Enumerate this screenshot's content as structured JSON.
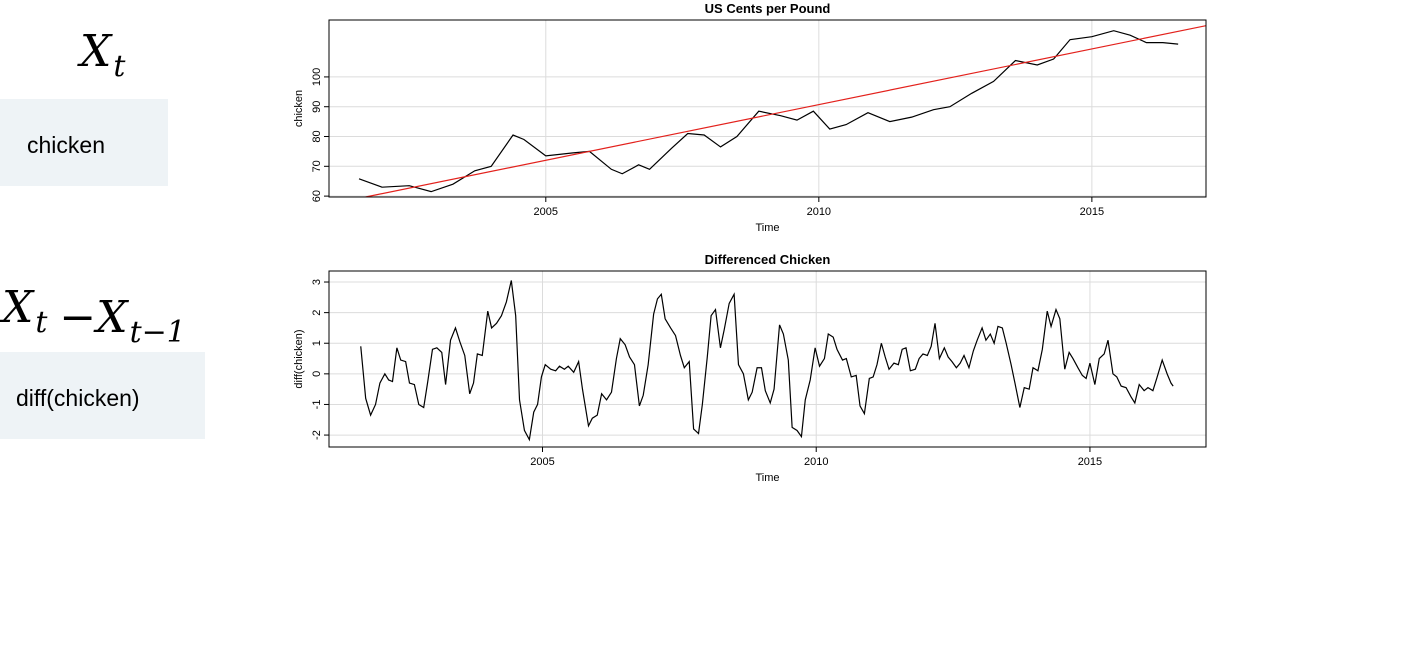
{
  "panels": [
    {
      "formula": [
        {
          "text": "X",
          "sub": "t"
        }
      ],
      "code": "chicken"
    },
    {
      "formula": [
        {
          "text": "X",
          "sub": "t"
        },
        {
          "text": "−"
        },
        {
          "text": "X",
          "sub": "t−1"
        }
      ],
      "code": "diff(chicken)"
    }
  ],
  "chart_data": [
    {
      "type": "line",
      "title": "US Cents per Pound",
      "xlabel": "Time",
      "ylabel": "chicken",
      "xlim": [
        2001.03,
        2017.09
      ],
      "xticks": [
        2005,
        2010,
        2015
      ],
      "ylim": [
        59.7,
        119.1
      ],
      "yticks": [
        60,
        70,
        80,
        90,
        100
      ],
      "grid": true,
      "series": [
        {
          "color": "#000000",
          "x": [
            2001.58,
            2002.0,
            2002.5,
            2002.9,
            2003.3,
            2003.7,
            2004.0,
            2004.4,
            2004.6,
            2005.0,
            2005.5,
            2005.8,
            2006.2,
            2006.4,
            2006.7,
            2006.9,
            2007.3,
            2007.6,
            2007.9,
            2008.2,
            2008.5,
            2008.9,
            2009.3,
            2009.6,
            2009.9,
            2010.2,
            2010.5,
            2010.9,
            2011.3,
            2011.7,
            2012.1,
            2012.4,
            2012.8,
            2013.2,
            2013.6,
            2014.0,
            2014.3,
            2014.6,
            2015.0,
            2015.4,
            2015.7,
            2016.0,
            2016.3,
            2016.58
          ],
          "values": [
            65.8,
            63,
            63.5,
            61.5,
            64,
            68.5,
            70,
            80.5,
            79,
            73.5,
            74.5,
            75,
            69,
            67.5,
            70.5,
            69,
            76,
            81,
            80.5,
            76.5,
            80,
            88.5,
            87,
            85.5,
            88.5,
            82.5,
            84,
            88,
            85,
            86.5,
            89,
            90,
            94.5,
            98.5,
            105.5,
            104,
            106,
            112.5,
            113.5,
            115.5,
            114,
            111.5,
            111.5,
            111
          ]
        },
        {
          "color": "#e3211c",
          "x": [
            2001.7,
            2017.09
          ],
          "values": [
            59.7,
            117.2
          ]
        }
      ]
    },
    {
      "type": "line",
      "title": "Differenced Chicken",
      "xlabel": "Time",
      "ylabel": "diff(chicken)",
      "xlim": [
        2001.1,
        2017.12
      ],
      "xticks": [
        2005,
        2010,
        2015
      ],
      "ylim": [
        -2.39,
        3.36
      ],
      "yticks": [
        -2,
        -1,
        0,
        1,
        2,
        3
      ],
      "grid": true,
      "series": [
        {
          "color": "#000000",
          "x": [
            2001.68,
            2001.77,
            2001.86,
            2001.95,
            2002.03,
            2002.12,
            2002.19,
            2002.26,
            2002.34,
            2002.41,
            2002.5,
            2002.57,
            2002.66,
            2002.74,
            2002.83,
            2002.9,
            2002.99,
            2003.07,
            2003.16,
            2003.23,
            2003.32,
            2003.41,
            2003.49,
            2003.58,
            2003.67,
            2003.74,
            2003.81,
            2003.9,
            2004.0,
            2004.07,
            2004.16,
            2004.25,
            2004.34,
            2004.43,
            2004.51,
            2004.58,
            2004.67,
            2004.76,
            2004.84,
            2004.91,
            2004.98,
            2005.05,
            2005.15,
            2005.24,
            2005.31,
            2005.4,
            2005.47,
            2005.57,
            2005.66,
            2005.73,
            2005.84,
            2005.91,
            2006.0,
            2006.08,
            2006.17,
            2006.26,
            2006.35,
            2006.42,
            2006.51,
            2006.59,
            2006.68,
            2006.77,
            2006.84,
            2006.93,
            2007.03,
            2007.1,
            2007.17,
            2007.24,
            2007.34,
            2007.43,
            2007.52,
            2007.59,
            2007.68,
            2007.76,
            2007.85,
            2007.92,
            2008.01,
            2008.08,
            2008.16,
            2008.25,
            2008.32,
            2008.41,
            2008.5,
            2008.58,
            2008.67,
            2008.76,
            2008.83,
            2008.92,
            2009.0,
            2009.07,
            2009.16,
            2009.23,
            2009.33,
            2009.4,
            2009.49,
            2009.56,
            2009.65,
            2009.73,
            2009.8,
            2009.89,
            2009.98,
            2010.06,
            2010.15,
            2010.22,
            2010.31,
            2010.38,
            2010.48,
            2010.55,
            2010.64,
            2010.73,
            2010.8,
            2010.88,
            2010.97,
            2011.04,
            2011.11,
            2011.19,
            2011.26,
            2011.33,
            2011.42,
            2011.5,
            2011.57,
            2011.64,
            2011.72,
            2011.81,
            2011.88,
            2011.95,
            2012.03,
            2012.1,
            2012.17,
            2012.25,
            2012.34,
            2012.41,
            2012.48,
            2012.56,
            2012.63,
            2012.7,
            2012.79,
            2012.87,
            2012.94,
            2013.03,
            2013.1,
            2013.18,
            2013.25,
            2013.32,
            2013.4,
            2013.47,
            2013.56,
            2013.63,
            2013.72,
            2013.8,
            2013.89,
            2013.96,
            2014.05,
            2014.13,
            2014.22,
            2014.29,
            2014.38,
            2014.45,
            2014.54,
            2014.62,
            2014.69,
            2014.78,
            2014.86,
            2014.93,
            2015.0,
            2015.09,
            2015.17,
            2015.26,
            2015.33,
            2015.42,
            2015.49,
            2015.57,
            2015.66,
            2015.75,
            2015.82,
            2015.9,
            2015.99,
            2016.06,
            2016.15,
            2016.22,
            2016.32,
            2016.41,
            2016.48,
            2016.52
          ],
          "values": [
            0.9,
            -0.8,
            -1.35,
            -1.0,
            -0.3,
            0,
            -0.2,
            -0.25,
            0.85,
            0.45,
            0.4,
            -0.3,
            -0.35,
            -1.0,
            -1.1,
            -0.3,
            0.8,
            0.85,
            0.7,
            -0.35,
            1.1,
            1.5,
            1.05,
            0.6,
            -0.65,
            -0.3,
            0.65,
            0.6,
            2.05,
            1.5,
            1.65,
            1.9,
            2.35,
            3.05,
            1.9,
            -0.85,
            -1.85,
            -2.15,
            -1.25,
            -1.0,
            -0.1,
            0.3,
            0.15,
            0.1,
            0.25,
            0.15,
            0.25,
            0.05,
            0.4,
            -0.5,
            -1.7,
            -1.45,
            -1.35,
            -0.65,
            -0.85,
            -0.6,
            0.5,
            1.15,
            0.95,
            0.55,
            0.3,
            -1.05,
            -0.7,
            0.3,
            1.95,
            2.45,
            2.6,
            1.8,
            1.5,
            1.25,
            0.6,
            0.2,
            0.4,
            -1.8,
            -1.95,
            -1.0,
            0.55,
            1.9,
            2.1,
            0.85,
            1.45,
            2.3,
            2.6,
            0.3,
            0,
            -0.85,
            -0.6,
            0.2,
            0.2,
            -0.55,
            -0.95,
            -0.5,
            1.6,
            1.3,
            0.45,
            -1.75,
            -1.85,
            -2.05,
            -0.85,
            -0.2,
            0.85,
            0.25,
            0.5,
            1.3,
            1.2,
            0.8,
            0.45,
            0.5,
            -0.1,
            -0.05,
            -1.05,
            -1.3,
            -0.15,
            -0.1,
            0.3,
            1.0,
            0.55,
            0.15,
            0.35,
            0.3,
            0.8,
            0.85,
            0.1,
            0.15,
            0.5,
            0.65,
            0.6,
            0.9,
            1.65,
            0.5,
            0.85,
            0.55,
            0.4,
            0.2,
            0.35,
            0.6,
            0.2,
            0.75,
            1.1,
            1.5,
            1.1,
            1.3,
            1.0,
            1.55,
            1.5,
            1.0,
            0.3,
            -0.3,
            -1.1,
            -0.45,
            -0.5,
            0.2,
            0.1,
            0.8,
            2.05,
            1.55,
            2.1,
            1.8,
            0.15,
            0.7,
            0.5,
            0.2,
            -0.05,
            -0.15,
            0.35,
            -0.35,
            0.5,
            0.65,
            1.1,
            0,
            -0.1,
            -0.4,
            -0.45,
            -0.75,
            -0.95,
            -0.35,
            -0.55,
            -0.45,
            -0.55,
            -0.15,
            0.45,
            0,
            -0.3,
            -0.4
          ]
        }
      ]
    }
  ]
}
